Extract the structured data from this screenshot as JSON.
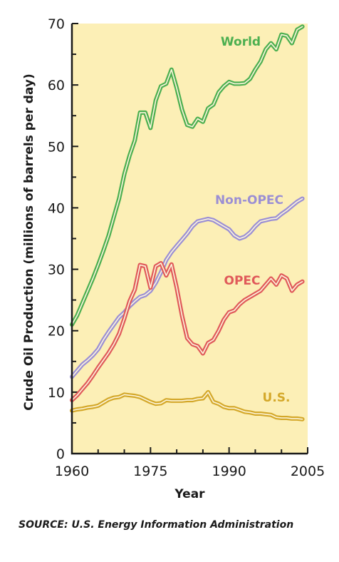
{
  "chart_data": {
    "type": "line",
    "xlabel": "Year",
    "ylabel": "Crude Oil Production (millions of barrels per day)",
    "xlim": [
      1960,
      2005
    ],
    "ylim": [
      0,
      70
    ],
    "x_ticks": [
      1960,
      1975,
      1990,
      2005
    ],
    "y_ticks": [
      0,
      10,
      20,
      30,
      40,
      50,
      60,
      70
    ],
    "grid": false,
    "background": "#fcefb6",
    "x": [
      1960,
      1961,
      1962,
      1963,
      1964,
      1965,
      1966,
      1967,
      1968,
      1969,
      1970,
      1971,
      1972,
      1973,
      1974,
      1975,
      1976,
      1977,
      1978,
      1979,
      1980,
      1981,
      1982,
      1983,
      1984,
      1985,
      1986,
      1987,
      1988,
      1989,
      1990,
      1991,
      1992,
      1993,
      1994,
      1995,
      1996,
      1997,
      1998,
      1999,
      2000,
      2001,
      2002,
      2003,
      2004
    ],
    "series": [
      {
        "name": "World",
        "color": "#4caf50",
        "values": [
          21.0,
          22.5,
          24.5,
          26.5,
          28.5,
          30.7,
          33.0,
          35.5,
          38.5,
          41.5,
          45.5,
          48.5,
          51.0,
          55.5,
          55.5,
          53.0,
          57.5,
          59.8,
          60.2,
          62.5,
          59.5,
          56.0,
          53.5,
          53.2,
          54.5,
          54.0,
          56.2,
          56.8,
          58.8,
          59.8,
          60.5,
          60.2,
          60.2,
          60.3,
          61.0,
          62.5,
          63.8,
          65.8,
          66.8,
          65.8,
          68.2,
          68.0,
          66.8,
          69.0,
          69.5
        ]
      },
      {
        "name": "Non-OPEC",
        "color": "#9b8fd4",
        "values": [
          12.5,
          13.5,
          14.5,
          15.2,
          16.0,
          17.0,
          18.5,
          19.8,
          21.0,
          22.2,
          23.0,
          24.0,
          24.8,
          25.5,
          25.8,
          26.5,
          27.8,
          29.5,
          31.5,
          32.8,
          33.8,
          34.8,
          35.8,
          37.0,
          37.8,
          38.0,
          38.2,
          38.0,
          37.5,
          37.0,
          36.5,
          35.5,
          35.0,
          35.3,
          36.0,
          37.0,
          37.8,
          38.0,
          38.2,
          38.3,
          39.0,
          39.6,
          40.3,
          41.0,
          41.5
        ]
      },
      {
        "name": "OPEC",
        "color": "#e05a5a",
        "values": [
          8.7,
          9.5,
          10.5,
          11.5,
          12.7,
          14.0,
          15.2,
          16.4,
          17.8,
          19.5,
          22.0,
          24.8,
          26.7,
          30.7,
          30.5,
          27.0,
          30.5,
          31.0,
          29.0,
          30.8,
          27.0,
          22.5,
          18.8,
          17.8,
          17.5,
          16.3,
          18.0,
          18.5,
          20.0,
          21.8,
          23.0,
          23.3,
          24.3,
          25.0,
          25.5,
          26.0,
          26.5,
          27.5,
          28.5,
          27.5,
          29.0,
          28.5,
          26.5,
          27.5,
          28.0
        ]
      },
      {
        "name": "U.S.",
        "color": "#d4a82a",
        "values": [
          7.0,
          7.2,
          7.3,
          7.5,
          7.6,
          7.8,
          8.3,
          8.8,
          9.1,
          9.2,
          9.6,
          9.5,
          9.4,
          9.2,
          8.8,
          8.4,
          8.1,
          8.2,
          8.7,
          8.6,
          8.6,
          8.6,
          8.7,
          8.7,
          8.9,
          9.0,
          10.0,
          8.4,
          8.1,
          7.6,
          7.4,
          7.4,
          7.1,
          6.8,
          6.7,
          6.5,
          6.5,
          6.4,
          6.3,
          5.9,
          5.8,
          5.8,
          5.7,
          5.7,
          5.6
        ]
      }
    ],
    "source": "SOURCE: U.S. Energy Information Administration"
  }
}
